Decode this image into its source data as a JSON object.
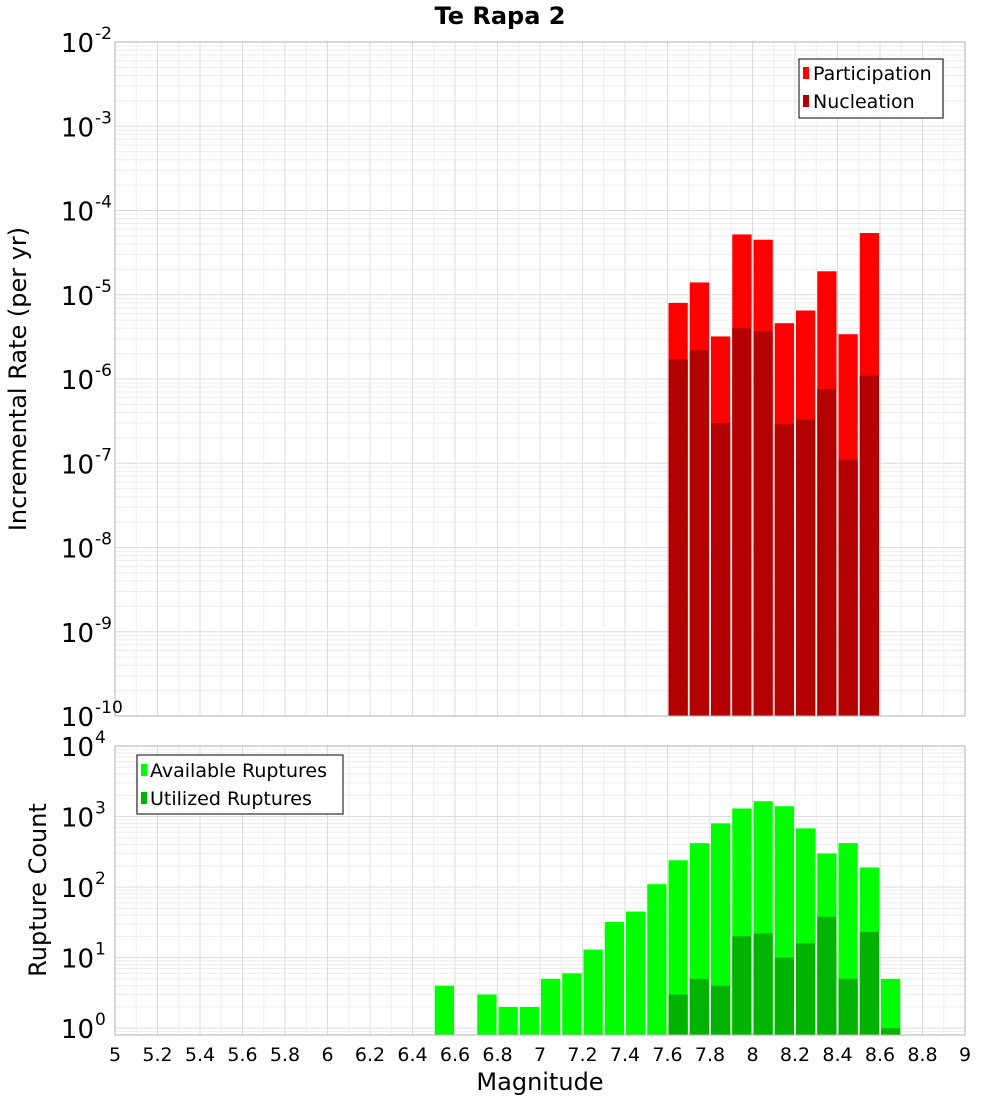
{
  "chart_data": [
    {
      "type": "bar",
      "title": "Te Rapa 2",
      "xlabel": "",
      "ylabel": "Incremental Rate (per yr)",
      "yscale": "log",
      "ylim": [
        1e-10,
        0.01
      ],
      "y_tick_exponents": [
        "-2",
        "-3",
        "-4",
        "-5",
        "-6",
        "-7",
        "-8",
        "-9",
        "-10"
      ],
      "y_tick_base": "10",
      "xlim": [
        5,
        9
      ],
      "bin_width": 0.1,
      "x": [
        7.65,
        7.75,
        7.85,
        7.95,
        8.05,
        8.15,
        8.25,
        8.35,
        8.45,
        8.55
      ],
      "series": [
        {
          "name": "Participation",
          "color": "#ff0000",
          "values": [
            8e-06,
            1.4e-05,
            3.2e-06,
            5.2e-05,
            4.5e-05,
            4.6e-06,
            6.5e-06,
            1.9e-05,
            3.4e-06,
            5.4e-05
          ]
        },
        {
          "name": "Nucleation",
          "color": "#b30000",
          "values": [
            1.7e-06,
            2.2e-06,
            3e-07,
            4e-06,
            3.7e-06,
            2.9e-07,
            3.3e-07,
            7.6e-07,
            1.1e-07,
            1.1e-06
          ]
        }
      ],
      "legend": "top-right",
      "grid": true
    },
    {
      "type": "bar",
      "title": "",
      "xlabel": "Magnitude",
      "ylabel": "Rupture Count",
      "yscale": "log",
      "ylim": [
        0.8,
        10000
      ],
      "y_tick_exponents": [
        "4",
        "3",
        "2",
        "1",
        "0"
      ],
      "y_tick_base": "10",
      "xlim": [
        5,
        9
      ],
      "x_ticks": [
        "5",
        "5.2",
        "5.4",
        "5.6",
        "5.8",
        "6",
        "6.2",
        "6.4",
        "6.6",
        "6.8",
        "7",
        "7.2",
        "7.4",
        "7.6",
        "7.8",
        "8",
        "8.2",
        "8.4",
        "8.6",
        "8.8",
        "9"
      ],
      "bin_width": 0.1,
      "x": [
        6.55,
        6.75,
        6.85,
        6.95,
        7.05,
        7.15,
        7.25,
        7.35,
        7.45,
        7.55,
        7.65,
        7.75,
        7.85,
        7.95,
        8.05,
        8.15,
        8.25,
        8.35,
        8.45,
        8.55,
        8.65
      ],
      "series": [
        {
          "name": "Available Ruptures",
          "color": "#00ff00",
          "values": [
            4,
            3,
            2,
            2,
            5,
            6,
            13,
            32,
            45,
            110,
            240,
            420,
            800,
            1300,
            1650,
            1400,
            680,
            300,
            420,
            190,
            5
          ]
        },
        {
          "name": "Utilized Ruptures",
          "color": "#00b300",
          "values": [
            0,
            0,
            0,
            0,
            0,
            0,
            0,
            0,
            0,
            0,
            3,
            5,
            4,
            20,
            22,
            10,
            16,
            38,
            5,
            23,
            1
          ]
        }
      ],
      "legend": "top-left",
      "grid": true
    }
  ]
}
